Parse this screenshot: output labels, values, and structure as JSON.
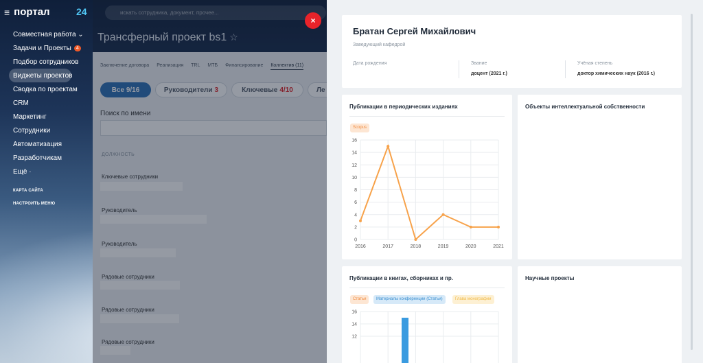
{
  "sidebar": {
    "logo": "портал",
    "count": "24",
    "items": [
      {
        "label": "Совместная работа ⌄",
        "badge": ""
      },
      {
        "label": "Задачи и Проекты",
        "badge": "4"
      },
      {
        "label": "Подбор сотрудников",
        "badge": ""
      },
      {
        "label": "Виджеты проектов",
        "badge": ""
      },
      {
        "label": "Сводка по проектам",
        "badge": ""
      },
      {
        "label": "CRM",
        "badge": ""
      },
      {
        "label": "Маркетинг",
        "badge": ""
      },
      {
        "label": "Сотрудники",
        "badge": ""
      },
      {
        "label": "Автоматизация",
        "badge": ""
      },
      {
        "label": "Разработчикам",
        "badge": ""
      },
      {
        "label": "Ещё ·",
        "badge": ""
      }
    ],
    "sitemap": "КАРТА САЙТА",
    "configure": "НАСТРОИТЬ МЕНЮ"
  },
  "search": {
    "placeholder": "искать сотрудника, документ, прочее..."
  },
  "project": {
    "title": "Трансферный проект bs1",
    "star": "☆",
    "tabs": [
      "Заключение договора",
      "Реализация",
      "TRL",
      "МТБ",
      "Финансирование",
      "Коллектив (11)"
    ],
    "pills": [
      {
        "label": "Все 9/16",
        "num": ""
      },
      {
        "label": "Руководители",
        "num": "3"
      },
      {
        "label": "Ключевые",
        "num": "4/10"
      },
      {
        "label": "Ле",
        "num": ""
      }
    ],
    "search_label": "Поиск по имени",
    "position_label": "ДОЛЖНОСТЬ",
    "groups": [
      "Ключевые сотрудники",
      "Руководитель",
      "Руководитель",
      "Рядовые сотрудники",
      "Рядовые сотрудники",
      "Рядовые сотрудники"
    ]
  },
  "close": "×",
  "profile": {
    "name": "Братан Сергей Михайлович",
    "role": "Заведующий кафедрой",
    "fields": [
      {
        "key": "Дата рождения",
        "value": ""
      },
      {
        "key": "Звание",
        "value": "доцент (2021 г.)"
      },
      {
        "key": "Учёная степень",
        "value": "доктор химических наук (2016 г.)"
      }
    ]
  },
  "cards": {
    "periodicals": {
      "title": "Публикации в периодических изданиях",
      "tag": "Scopus"
    },
    "ip": {
      "title": "Объекты интеллектуальной собственности"
    },
    "books": {
      "title": "Публикации в книгах, сборниках и пр.",
      "tags": [
        "Статьи",
        "Материалы конференции (Статьи)",
        "Глава монографии"
      ]
    },
    "science": {
      "title": "Научные проекты"
    }
  },
  "chart_data": [
    {
      "type": "line",
      "title": "Публикации в периодических изданиях",
      "x": [
        "2016",
        "2017",
        "2018",
        "2019",
        "2020",
        "2021"
      ],
      "series": [
        {
          "name": "Scopus",
          "values": [
            3,
            15,
            0,
            4,
            2,
            2
          ]
        }
      ],
      "ylim": [
        0,
        16
      ],
      "yticks": [
        "0",
        "2",
        "4",
        "6",
        "8",
        "10",
        "12",
        "14",
        "16"
      ],
      "color": "#f7a24a",
      "grid": true,
      "legend": "top-left"
    },
    {
      "type": "bar",
      "title": "Публикации в книгах, сборниках и пр.",
      "series": [
        {
          "name": "Статьи",
          "color": "#f9b98a"
        },
        {
          "name": "Материалы конференции (Статьи)",
          "color": "#3a9be0"
        },
        {
          "name": "Глава монографии",
          "color": "#f7c964"
        }
      ],
      "visible_yticks": [
        "16",
        "14",
        "12"
      ],
      "ylim": [
        0,
        16
      ],
      "visible_bar": {
        "series": "Материалы конференции (Статьи)",
        "value_exceeds": 12
      }
    }
  ]
}
